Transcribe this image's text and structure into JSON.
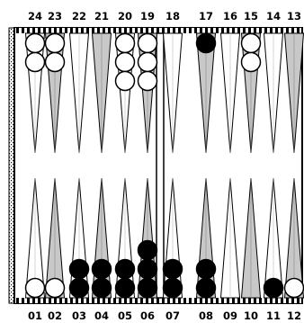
{
  "top_point_numbers": [
    "24",
    "23",
    "22",
    "21",
    "20",
    "19",
    "18",
    "17",
    "16",
    "15",
    "14",
    "13"
  ],
  "bottom_point_numbers": [
    "01",
    "02",
    "03",
    "04",
    "05",
    "06",
    "07",
    "08",
    "09",
    "10",
    "11",
    "12"
  ],
  "colors": {
    "board_edge": "#000000",
    "light_triangle": "#ffffff",
    "shaded_triangle": "#c8c8c8",
    "white_checker": "#ffffff",
    "black_checker": "#000000"
  },
  "position": {
    "top": [
      {
        "point": "24",
        "white": 2,
        "black": 0
      },
      {
        "point": "23",
        "white": 2,
        "black": 0
      },
      {
        "point": "22",
        "white": 0,
        "black": 0
      },
      {
        "point": "21",
        "white": 0,
        "black": 0
      },
      {
        "point": "20",
        "white": 3,
        "black": 0
      },
      {
        "point": "19",
        "white": 3,
        "black": 0
      },
      {
        "point": "18",
        "white": 0,
        "black": 0
      },
      {
        "point": "17",
        "white": 0,
        "black": 1
      },
      {
        "point": "16",
        "white": 0,
        "black": 0
      },
      {
        "point": "15",
        "white": 2,
        "black": 0
      },
      {
        "point": "14",
        "white": 0,
        "black": 0
      },
      {
        "point": "13",
        "white": 0,
        "black": 0
      }
    ],
    "bottom": [
      {
        "point": "01",
        "white": 1,
        "black": 0
      },
      {
        "point": "02",
        "white": 1,
        "black": 0
      },
      {
        "point": "03",
        "white": 0,
        "black": 2
      },
      {
        "point": "04",
        "white": 0,
        "black": 2
      },
      {
        "point": "05",
        "white": 0,
        "black": 2
      },
      {
        "point": "06",
        "white": 0,
        "black": 3
      },
      {
        "point": "07",
        "white": 0,
        "black": 2
      },
      {
        "point": "08",
        "white": 0,
        "black": 2
      },
      {
        "point": "09",
        "white": 0,
        "black": 0
      },
      {
        "point": "10",
        "white": 0,
        "black": 0
      },
      {
        "point": "11",
        "white": 0,
        "black": 1
      },
      {
        "point": "12",
        "white": 1,
        "black": 0
      }
    ]
  }
}
